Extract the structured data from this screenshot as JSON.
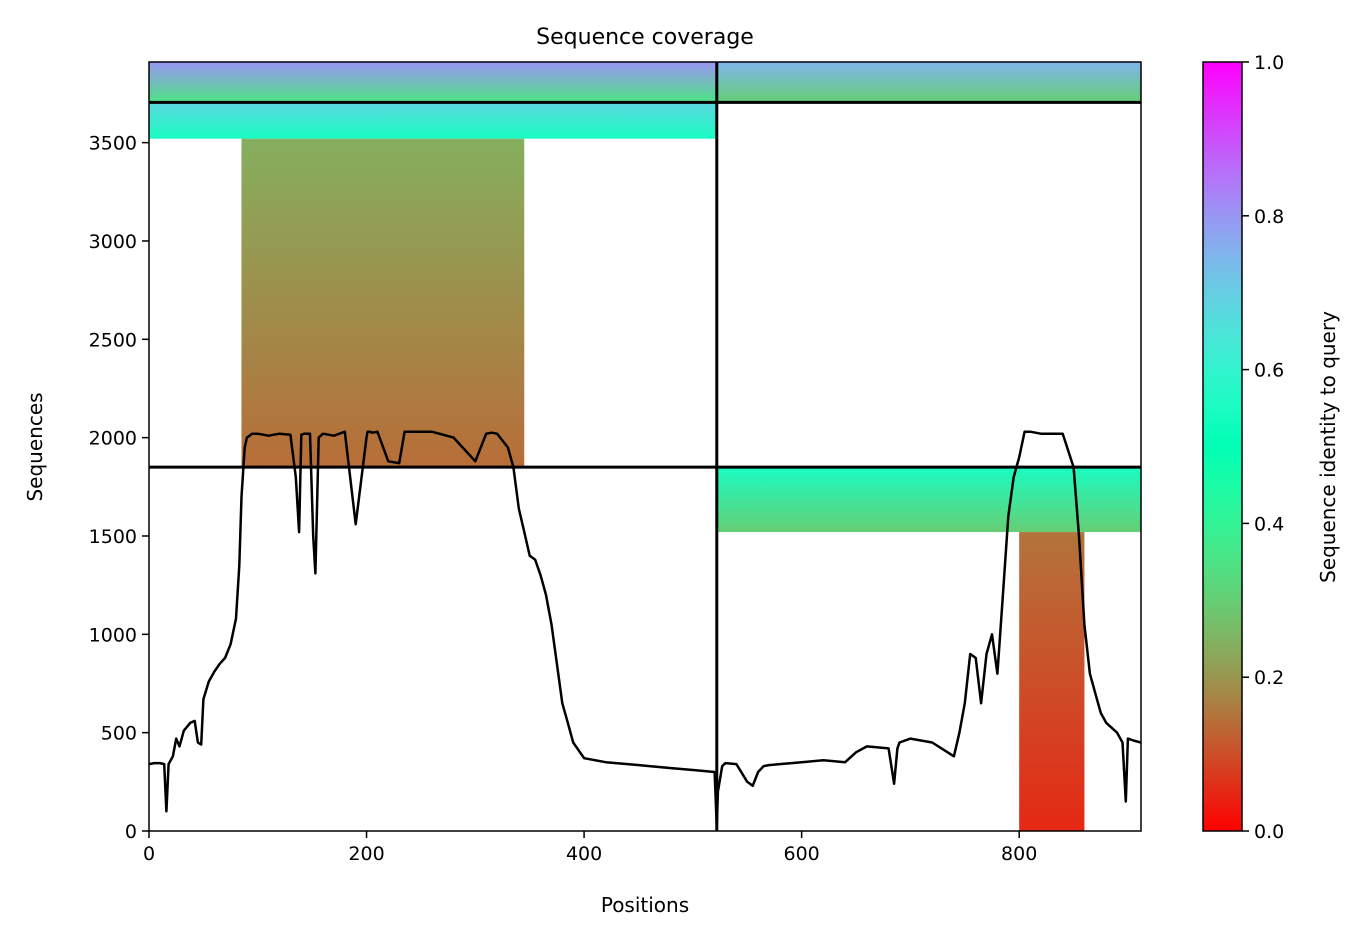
{
  "chart_data": {
    "type": "heatmap",
    "title": "Sequence coverage",
    "xlabel": "Positions",
    "ylabel": "Sequences",
    "xlim": [
      0,
      912
    ],
    "ylim": [
      0,
      3910
    ],
    "xticks": [
      0,
      200,
      400,
      600,
      800
    ],
    "yticks": [
      0,
      500,
      1000,
      1500,
      2000,
      2500,
      3000,
      3500
    ],
    "colorbar": {
      "label": "Sequence identity to query",
      "range": [
        0,
        1
      ],
      "ticks": [
        "0.0",
        "0.2",
        "0.4",
        "0.6",
        "0.8",
        "1.0"
      ],
      "colormap": "rainbow_r"
    },
    "separators": {
      "vertical_x": [
        522
      ],
      "horizontal_y": [
        1850,
        3705
      ]
    },
    "coverage_blocks": [
      {
        "x0": 0,
        "x1": 522,
        "y0": 3705,
        "y1": 3910,
        "identity_bottom": 0.35,
        "identity_top": 0.8
      },
      {
        "x0": 522,
        "x1": 912,
        "y0": 3705,
        "y1": 3910,
        "identity_bottom": 0.3,
        "identity_top": 0.75
      },
      {
        "x0": 0,
        "x1": 522,
        "y0": 3520,
        "y1": 3705,
        "identity_bottom": 0.55,
        "identity_top": 0.68
      },
      {
        "x0": 85,
        "x1": 345,
        "y0": 1850,
        "y1": 3520,
        "identity_bottom": 0.14,
        "identity_top": 0.24
      },
      {
        "x0": 522,
        "x1": 912,
        "y0": 1520,
        "y1": 1850,
        "identity_bottom": 0.3,
        "identity_top": 0.55
      },
      {
        "x0": 800,
        "x1": 860,
        "y0": 0,
        "y1": 1520,
        "identity_bottom": 0.05,
        "identity_top": 0.15
      }
    ],
    "coverage_line": {
      "x": [
        0,
        5,
        10,
        14,
        16,
        18,
        22,
        25,
        28,
        32,
        38,
        42,
        45,
        48,
        50,
        55,
        60,
        65,
        70,
        75,
        80,
        83,
        85,
        88,
        90,
        95,
        100,
        110,
        120,
        130,
        135,
        138,
        140,
        143,
        148,
        151,
        153,
        156,
        160,
        170,
        180,
        190,
        200,
        201,
        203,
        205,
        210,
        220,
        230,
        235,
        238,
        241,
        245,
        260,
        280,
        300,
        310,
        315,
        320,
        330,
        335,
        340,
        345,
        350,
        355,
        360,
        365,
        370,
        375,
        380,
        385,
        390,
        400,
        420,
        440,
        460,
        480,
        500,
        520,
        522,
        523,
        527,
        530,
        540,
        550,
        555,
        560,
        565,
        570,
        580,
        600,
        620,
        640,
        650,
        660,
        680,
        685,
        688,
        690,
        700,
        720,
        740,
        745,
        750,
        755,
        760,
        765,
        770,
        775,
        780,
        785,
        790,
        795,
        800,
        805,
        810,
        820,
        830,
        840,
        850,
        855,
        860,
        865,
        870,
        875,
        880,
        890,
        895,
        898,
        900,
        905,
        912
      ],
      "y": [
        340,
        345,
        345,
        340,
        100,
        340,
        380,
        470,
        430,
        510,
        550,
        560,
        450,
        440,
        670,
        760,
        810,
        850,
        880,
        950,
        1080,
        1350,
        1700,
        1950,
        2000,
        2020,
        2020,
        2010,
        2020,
        2015,
        1800,
        1520,
        2015,
        2020,
        2020,
        1500,
        1310,
        2000,
        2020,
        2010,
        2030,
        1560,
        2000,
        2030,
        2030,
        2025,
        2030,
        1880,
        1870,
        2030,
        2030,
        2030,
        2030,
        2030,
        2000,
        1880,
        2020,
        2025,
        2020,
        1950,
        1850,
        1640,
        1520,
        1400,
        1380,
        1300,
        1200,
        1050,
        850,
        650,
        550,
        450,
        370,
        350,
        340,
        330,
        320,
        310,
        300,
        20,
        200,
        330,
        345,
        340,
        250,
        230,
        300,
        330,
        335,
        340,
        350,
        360,
        350,
        400,
        430,
        420,
        240,
        420,
        450,
        470,
        450,
        380,
        500,
        650,
        900,
        880,
        650,
        900,
        1000,
        800,
        1200,
        1600,
        1800,
        1900,
        2030,
        2030,
        2020,
        2020,
        2020,
        1850,
        1500,
        1050,
        800,
        700,
        600,
        550,
        500,
        450,
        150,
        470,
        460,
        450
      ]
    }
  }
}
